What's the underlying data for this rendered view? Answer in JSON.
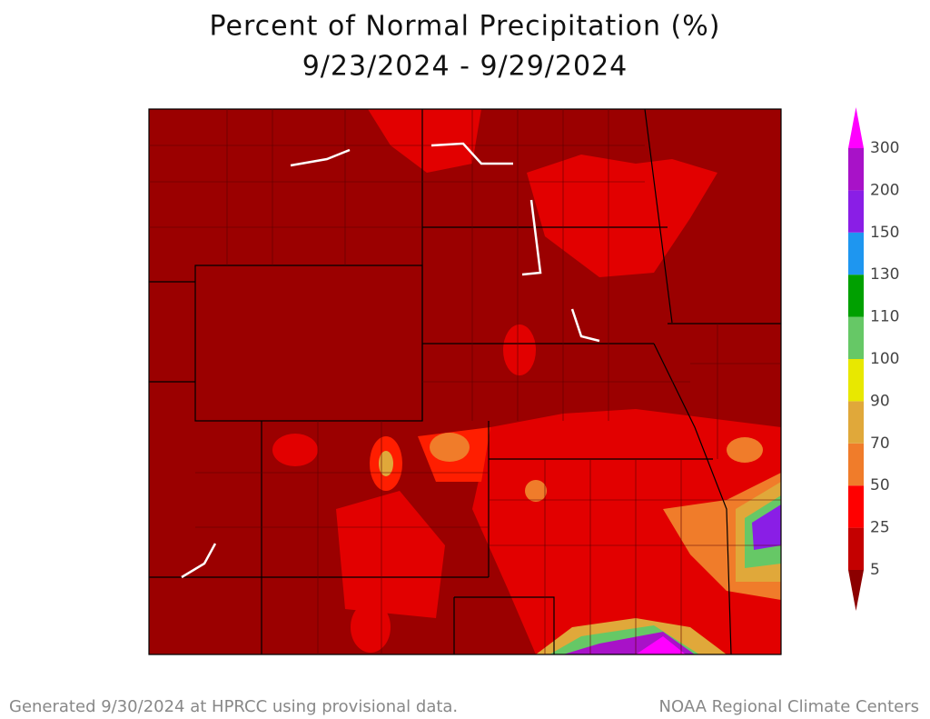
{
  "header": {
    "title": "Percent of Normal Precipitation (%)",
    "dates": "9/23/2024 - 9/29/2024"
  },
  "legend": {
    "ticks": [
      5,
      25,
      50,
      70,
      90,
      100,
      110,
      130,
      150,
      200,
      300
    ],
    "colors": [
      "#8c0000",
      "#c40000",
      "#ff0000",
      "#f07c2a",
      "#e0a83a",
      "#e8e800",
      "#66c866",
      "#00a000",
      "#1e96f0",
      "#8a1ee6",
      "#a812c8",
      "#ff00ff"
    ]
  },
  "footer": {
    "left": "Generated 9/30/2024 at HPRCC using provisional data.",
    "right": "NOAA Regional Climate Centers"
  }
}
